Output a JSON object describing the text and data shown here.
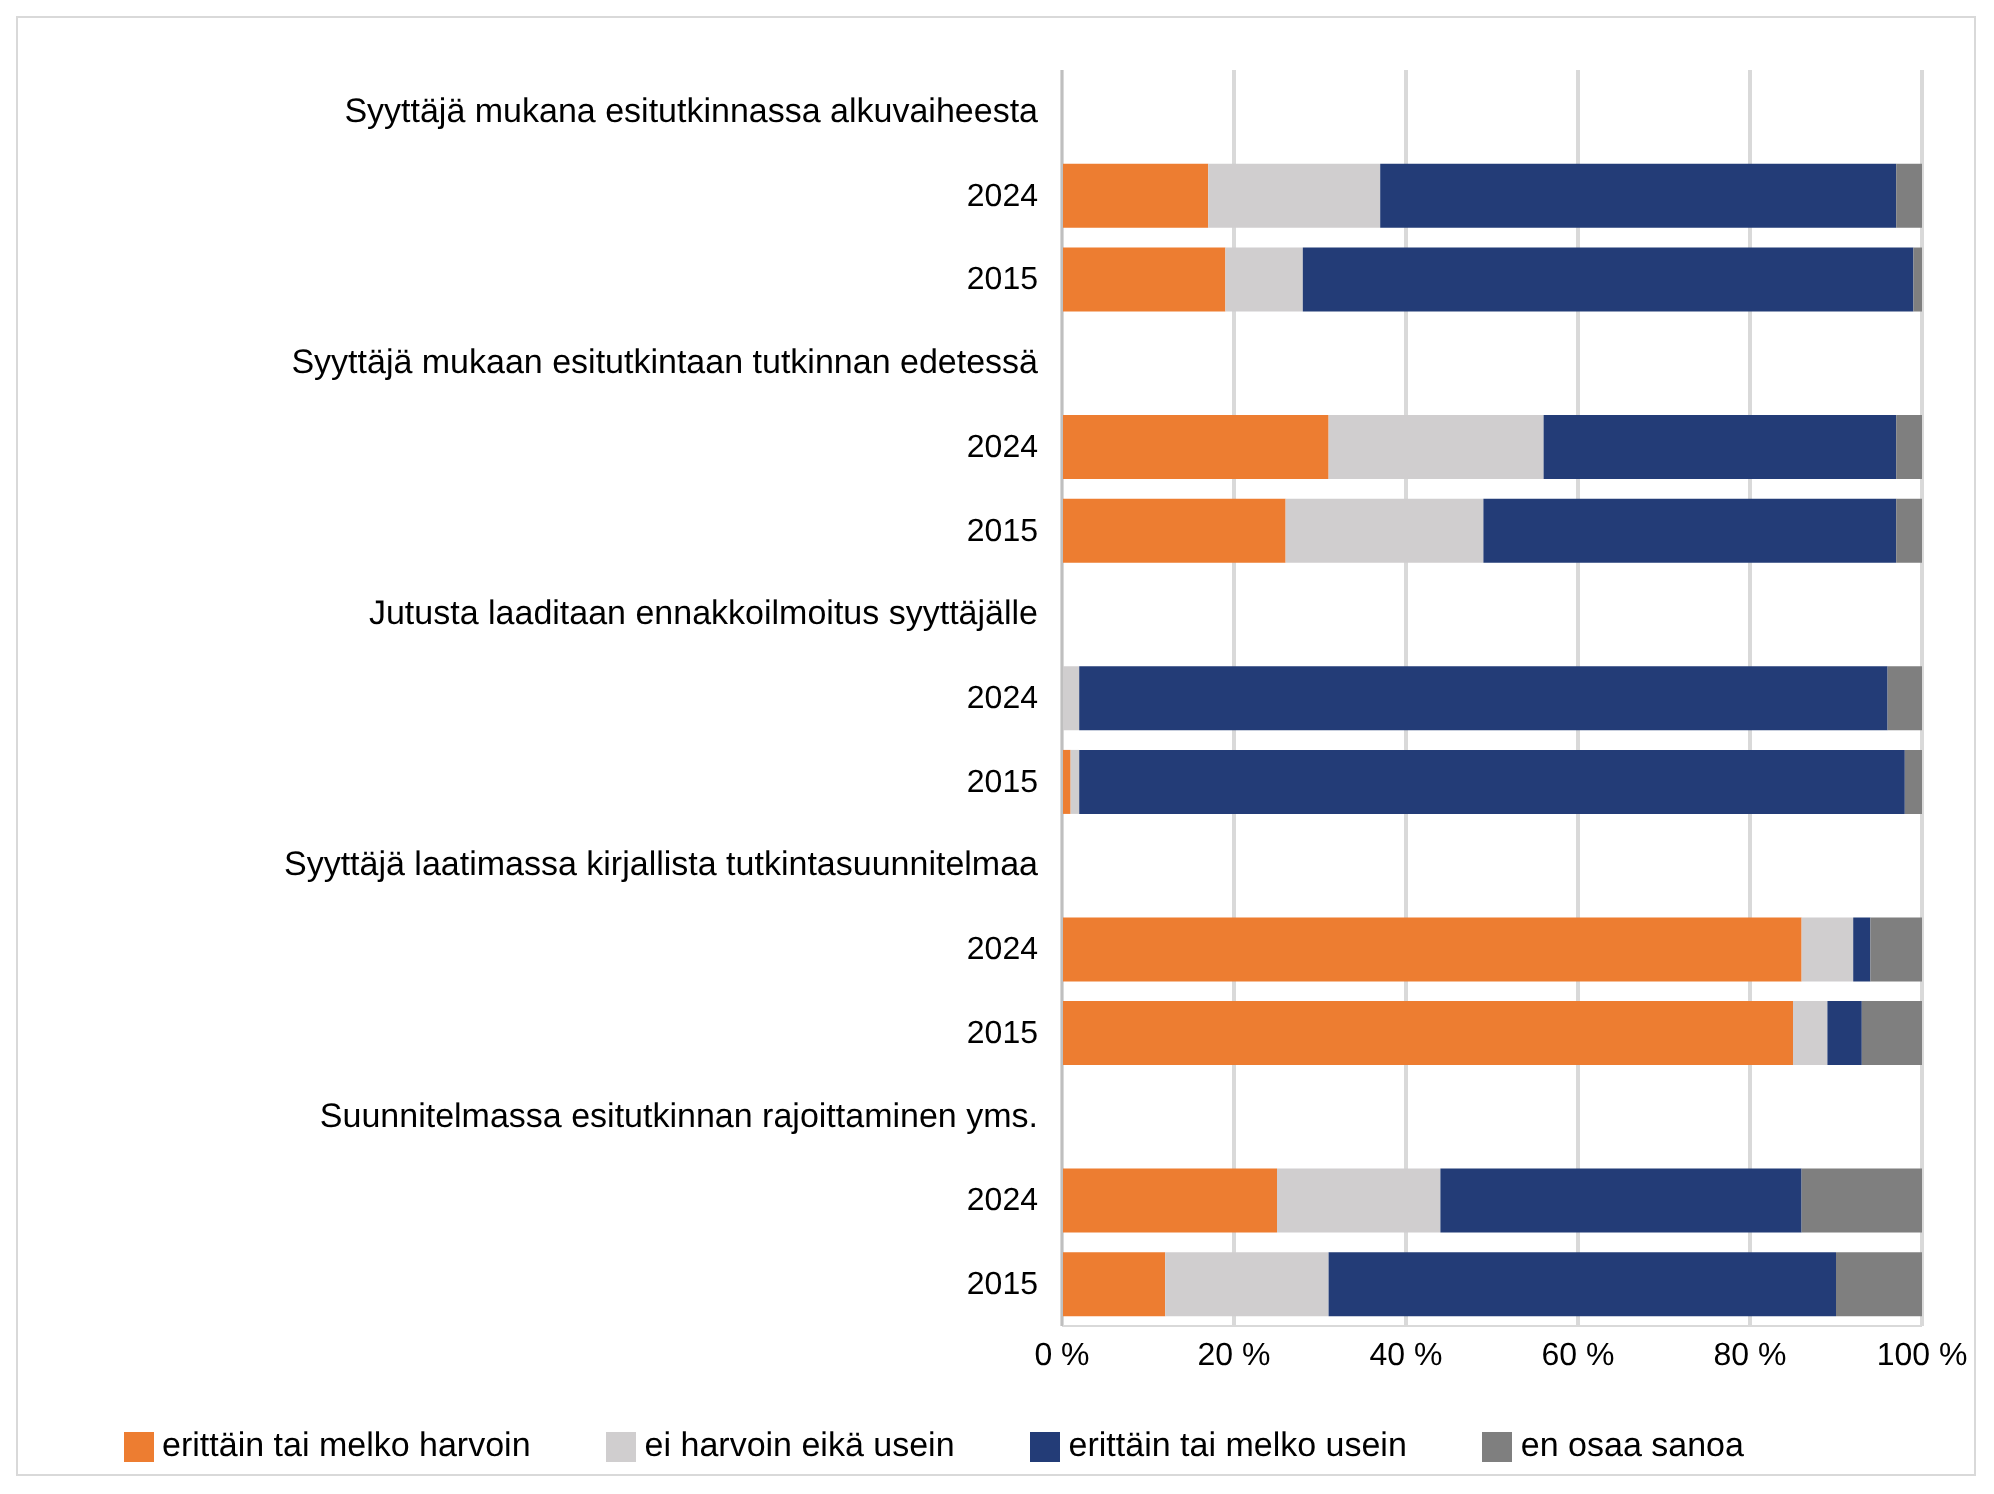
{
  "chart_data": {
    "type": "bar",
    "orientation": "horizontal",
    "stacked": true,
    "categories": [
      "Syyttäjä mukana esitutkinnassa alkuvaiheesta",
      "2024",
      "2015",
      "Syyttäjä mukaan esitutkintaan tutkinnan edetessä",
      "2024",
      "2015",
      "Jutusta laaditaan ennakkoilmoitus syyttäjälle",
      "2024",
      "2015",
      "Syyttäjä laatimassa kirjallista tutkintasuunnitelmaa",
      "2024",
      "2015",
      "Suunnitelmassa esitutkinnan rajoittaminen yms.",
      "2024",
      "2015"
    ],
    "series": [
      {
        "name": "erittäin tai melko harvoin",
        "color": "#ed7d31",
        "values": [
          null,
          17,
          19,
          null,
          31,
          26,
          null,
          0,
          1,
          null,
          86,
          85,
          null,
          25,
          12
        ]
      },
      {
        "name": "ei harvoin eikä usein",
        "color": "#d0cecf",
        "values": [
          null,
          20,
          9,
          null,
          25,
          23,
          null,
          2,
          1,
          null,
          6,
          4,
          null,
          19,
          19
        ]
      },
      {
        "name": "erittäin tai melko usein",
        "color": "#233c77",
        "values": [
          null,
          60,
          71,
          null,
          41,
          48,
          null,
          94,
          96,
          null,
          2,
          4,
          null,
          42,
          59
        ]
      },
      {
        "name": "en osaa sanoa",
        "color": "#7f7f7f",
        "values": [
          null,
          3,
          1,
          null,
          3,
          3,
          null,
          4,
          2,
          null,
          6,
          7,
          null,
          14,
          10
        ]
      }
    ],
    "xlim": [
      0,
      100
    ],
    "xticks": [
      {
        "value": 0,
        "label": "0 %"
      },
      {
        "value": 20,
        "label": "20 %"
      },
      {
        "value": 40,
        "label": "40 %"
      },
      {
        "value": 60,
        "label": "60 %"
      },
      {
        "value": 80,
        "label": "80 %"
      },
      {
        "value": 100,
        "label": "100 %"
      }
    ],
    "grid": "x",
    "legend": "bottom"
  }
}
